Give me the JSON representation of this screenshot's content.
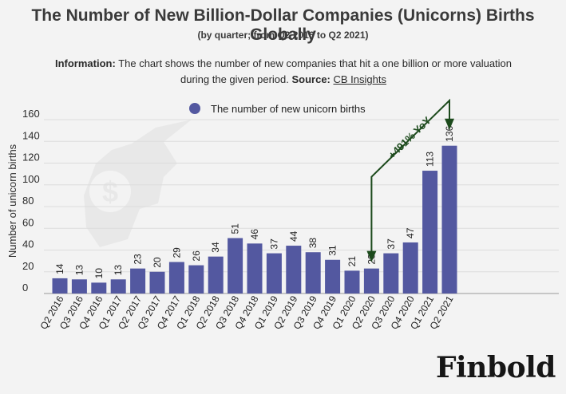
{
  "header": {
    "title": "The Number of New Billion-Dollar Companies (Unicorns) Births Globally",
    "subtitle": "(by quarter; from Q2 2016 to Q2 2021)"
  },
  "info": {
    "label": "Information:",
    "text": "The chart shows the number of new companies that hit a one billion or more valuation during the given period.",
    "source_label": "Source:",
    "source": "CB Insights"
  },
  "chart_data": {
    "type": "bar",
    "categories": [
      "Q2 2016",
      "Q3 2016",
      "Q4 2016",
      "Q1 2017",
      "Q2 2017",
      "Q3 2017",
      "Q4 2017",
      "Q1 2018",
      "Q2 2018",
      "Q3 2018",
      "Q4 2018",
      "Q1 2019",
      "Q2 2019",
      "Q3 2019",
      "Q4 2019",
      "Q1 2020",
      "Q2 2020",
      "Q3 2020",
      "Q4 2020",
      "Q1 2021",
      "Q2 2021"
    ],
    "series": [
      {
        "name": "The number of new unicorn births",
        "values": [
          14,
          13,
          10,
          13,
          23,
          20,
          29,
          26,
          34,
          51,
          46,
          37,
          44,
          38,
          31,
          21,
          23,
          37,
          47,
          113,
          136
        ]
      }
    ],
    "ylabel": "Number of unicorn births",
    "ylim": [
      0,
      160
    ],
    "yticks": [
      0,
      20,
      40,
      60,
      80,
      100,
      120,
      140,
      160
    ],
    "grid": true,
    "legend_position": "top",
    "bar_color": "#5358a0",
    "annotation": {
      "text": "+491% YoY",
      "from": "Q2 2020",
      "to": "Q2 2021",
      "color": "#1c4a1c"
    }
  },
  "brand": {
    "name": "Finbold"
  }
}
